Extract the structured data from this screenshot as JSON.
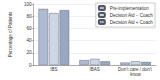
{
  "chart_data": {
    "type": "bar",
    "y_label": "Percentage of Patients",
    "categories": [
      "IBS",
      "IBAS",
      "Don't care / don't know"
    ],
    "series": [
      {
        "name": "Pre-implementation",
        "color": "#aebad0",
        "values": [
          92,
          8,
          4
        ]
      },
      {
        "name": "Decision Aid − Coach",
        "color": "#cdd6e4",
        "values": [
          85,
          10,
          6
        ]
      },
      {
        "name": "Decision Aid + Coach",
        "color": "#98a8c2",
        "values": [
          90,
          6,
          5
        ]
      }
    ],
    "ylim": [
      0,
      100
    ],
    "yticks": [
      0,
      20,
      40,
      60,
      80,
      100
    ],
    "grid": true,
    "legend": "upper right"
  }
}
